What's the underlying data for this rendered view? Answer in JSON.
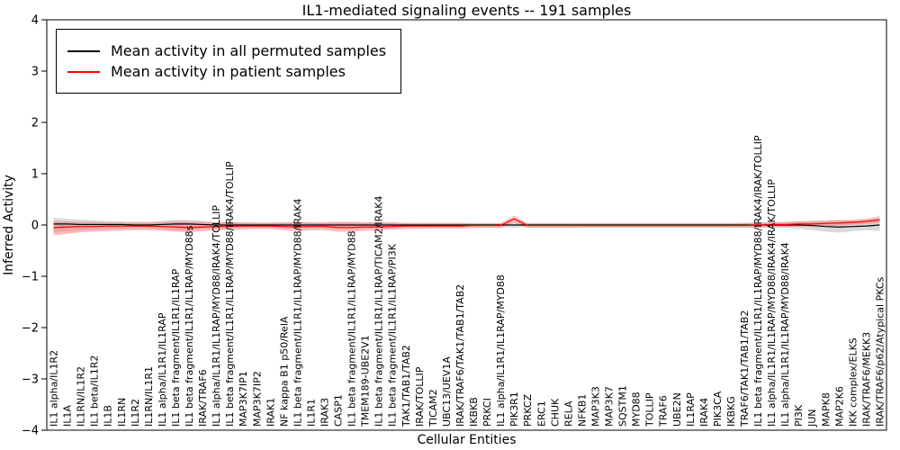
{
  "chart_data": {
    "type": "line",
    "title": "IL1-mediated signaling events -- 191 samples",
    "xlabel": "Cellular Entities",
    "ylabel": "Inferred Activity",
    "ylim": [
      -4,
      4
    ],
    "yticks": [
      -4,
      -3,
      -2,
      -1,
      0,
      1,
      2,
      3,
      4
    ],
    "grid": false,
    "legend_position": "upper left",
    "legend": [
      {
        "label": "Mean activity in all permuted samples",
        "color": "#000000"
      },
      {
        "label": "Mean activity in patient samples",
        "color": "#ff0000"
      }
    ],
    "categories": [
      "IL1 alpha/IL1R2",
      "IL1A",
      "IL1RN/IL1R2",
      "IL1 beta/IL1R2",
      "IL1B",
      "IL1RN",
      "IL1R2",
      "IL1RN/IL1R1",
      "IL1 alpha/IL1R1/IL1RAP",
      "IL1 beta fragment/IL1R1/IL1RAP",
      "IL1 beta fragment/IL1R1/IL1RAP/MYD88s",
      "IRAK/TRAF6",
      "IL1 alpha/IL1R1/IL1RAP/MYD88/IRAK4/TOLLIP",
      "IL1 beta fragment/IL1R1/IL1RAP/MYD88/IRAK4/TOLLIP",
      "MAP3K7IP1",
      "MAP3K7IP2",
      "IRAK1",
      "NF kappa B1 p50/RelA",
      "IL1 beta fragment/IL1R1/IL1RAP/MYD88/IRAK4",
      "IL1R1",
      "IRAK3",
      "CASP1",
      "IL1 beta fragment/IL1R1/IL1RAP/MYD88",
      "TMEM189-UBE2V1",
      "IL1 beta fragment/IL1R1/IL1RAP/TICAM2/IRAK4",
      "IL1 beta fragment/IL1R1/IL1RAP/PI3K",
      "TAK1/TAB1/TAB2",
      "IRAK/TOLLIP",
      "TICAM2",
      "UBC13/UEV1A",
      "IRAK/TRAF6/TAK1/TAB1/TAB2",
      "IKBKB",
      "PRKCI",
      "IL1 alpha/IL1R1/IL1RAP/MYD88",
      "PIK3R1",
      "PRKCZ",
      "ERC1",
      "CHUK",
      "RELA",
      "NFKB1",
      "MAP3K3",
      "MAP3K7",
      "SQSTM1",
      "MYD88",
      "TOLLIP",
      "TRAF6",
      "UBE2N",
      "IL1RAP",
      "IRAK4",
      "PIK3CA",
      "IKBKG",
      "TRAF6/TAK1/TAB1/TAB2",
      "IL1 beta fragment/IL1R1/IL1RAP/MYD88/IRAK4/IRAK/TOLLIP",
      "IL1 alpha/IL1R1/IL1RAP/MYD88/IRAK4/IRAK/TOLLIP",
      "IL1 alpha/IL1R1/IL1RAP/MYD88/IRAK4",
      "PI3K",
      "JUN",
      "MAPK8",
      "MAP2K6",
      "IKK complex/ELKS",
      "IRAK/TRAF6/MEKK3",
      "IRAK/TRAF6/p62/Atypical PKCs"
    ],
    "series": [
      {
        "key": "permuted",
        "name": "Mean activity in all permuted samples",
        "color": "#000000",
        "band_color": "#bbbbbb",
        "band_opacity": 0.55,
        "values": [
          0.02,
          0.02,
          0.01,
          0.01,
          0.01,
          0.01,
          0.0,
          0.0,
          0.01,
          0.02,
          0.02,
          0.01,
          0.0,
          0.0,
          0.0,
          0.0,
          0.0,
          0.0,
          0.0,
          0.0,
          0.0,
          0.0,
          0.0,
          0.0,
          0.0,
          0.0,
          0.0,
          0.0,
          0.0,
          0.0,
          0.0,
          0.0,
          0.0,
          0.0,
          0.0,
          0.0,
          0.0,
          0.0,
          0.0,
          0.0,
          0.0,
          0.0,
          0.0,
          0.0,
          0.0,
          0.0,
          0.0,
          0.0,
          0.0,
          0.0,
          0.0,
          0.0,
          0.0,
          0.0,
          0.0,
          0.0,
          -0.01,
          -0.03,
          -0.04,
          -0.03,
          -0.02,
          0.0
        ],
        "band": {
          "upper": [
            0.14,
            0.12,
            0.1,
            0.09,
            0.08,
            0.07,
            0.06,
            0.06,
            0.08,
            0.1,
            0.1,
            0.08,
            0.06,
            0.06,
            0.05,
            0.05,
            0.05,
            0.05,
            0.06,
            0.05,
            0.05,
            0.06,
            0.06,
            0.05,
            0.05,
            0.05,
            0.04,
            0.04,
            0.04,
            0.04,
            0.04,
            0.04,
            0.04,
            0.04,
            0.05,
            0.04,
            0.04,
            0.04,
            0.04,
            0.04,
            0.04,
            0.04,
            0.04,
            0.04,
            0.04,
            0.04,
            0.04,
            0.04,
            0.04,
            0.04,
            0.04,
            0.05,
            0.05,
            0.06,
            0.06,
            0.07,
            0.08,
            0.09,
            0.1,
            0.09,
            0.1,
            0.12
          ],
          "lower": [
            -0.14,
            -0.12,
            -0.1,
            -0.09,
            -0.08,
            -0.07,
            -0.06,
            -0.06,
            -0.08,
            -0.1,
            -0.1,
            -0.08,
            -0.06,
            -0.06,
            -0.05,
            -0.05,
            -0.05,
            -0.05,
            -0.06,
            -0.05,
            -0.05,
            -0.06,
            -0.06,
            -0.05,
            -0.05,
            -0.05,
            -0.04,
            -0.04,
            -0.04,
            -0.04,
            -0.04,
            -0.04,
            -0.04,
            -0.04,
            -0.05,
            -0.04,
            -0.04,
            -0.04,
            -0.04,
            -0.04,
            -0.04,
            -0.04,
            -0.04,
            -0.04,
            -0.04,
            -0.04,
            -0.04,
            -0.04,
            -0.04,
            -0.04,
            -0.04,
            -0.05,
            -0.05,
            -0.06,
            -0.06,
            -0.07,
            -0.1,
            -0.13,
            -0.15,
            -0.12,
            -0.1,
            -0.12
          ]
        }
      },
      {
        "key": "patient",
        "name": "Mean activity in patient samples",
        "color": "#ff0000",
        "band_color": "#ff6666",
        "band_opacity": 0.45,
        "values": [
          -0.05,
          -0.04,
          -0.03,
          -0.03,
          -0.02,
          -0.02,
          -0.02,
          -0.02,
          -0.03,
          -0.04,
          -0.05,
          -0.04,
          -0.03,
          -0.03,
          -0.02,
          -0.02,
          -0.02,
          -0.03,
          -0.04,
          -0.03,
          -0.03,
          -0.05,
          -0.05,
          -0.04,
          -0.04,
          -0.03,
          -0.02,
          -0.02,
          -0.02,
          -0.02,
          -0.02,
          -0.01,
          -0.01,
          -0.01,
          0.12,
          -0.01,
          -0.01,
          -0.01,
          -0.01,
          -0.01,
          -0.01,
          -0.01,
          -0.01,
          -0.01,
          -0.01,
          -0.01,
          -0.01,
          -0.01,
          -0.01,
          -0.01,
          -0.01,
          -0.01,
          0.0,
          0.01,
          0.01,
          0.02,
          0.02,
          0.03,
          0.04,
          0.05,
          0.07,
          0.1
        ],
        "band": {
          "upper": [
            0.08,
            0.07,
            0.06,
            0.06,
            0.05,
            0.05,
            0.05,
            0.05,
            0.06,
            0.07,
            0.07,
            0.06,
            0.05,
            0.05,
            0.05,
            0.04,
            0.04,
            0.05,
            0.06,
            0.05,
            0.05,
            0.06,
            0.06,
            0.05,
            0.05,
            0.05,
            0.04,
            0.04,
            0.04,
            0.04,
            0.04,
            0.03,
            0.03,
            0.03,
            0.18,
            0.03,
            0.03,
            0.03,
            0.03,
            0.03,
            0.03,
            0.03,
            0.03,
            0.03,
            0.03,
            0.03,
            0.03,
            0.03,
            0.03,
            0.03,
            0.03,
            0.03,
            0.04,
            0.05,
            0.06,
            0.07,
            0.08,
            0.08,
            0.09,
            0.1,
            0.12,
            0.17
          ],
          "lower": [
            -0.2,
            -0.17,
            -0.14,
            -0.13,
            -0.12,
            -0.11,
            -0.1,
            -0.1,
            -0.11,
            -0.13,
            -0.14,
            -0.12,
            -0.1,
            -0.1,
            -0.09,
            -0.08,
            -0.08,
            -0.1,
            -0.12,
            -0.1,
            -0.1,
            -0.13,
            -0.13,
            -0.11,
            -0.1,
            -0.09,
            -0.08,
            -0.08,
            -0.07,
            -0.07,
            -0.07,
            -0.06,
            -0.06,
            -0.06,
            0.05,
            -0.06,
            -0.06,
            -0.06,
            -0.06,
            -0.05,
            -0.05,
            -0.05,
            -0.05,
            -0.05,
            -0.05,
            -0.05,
            -0.05,
            -0.05,
            -0.05,
            -0.05,
            -0.05,
            -0.05,
            -0.05,
            -0.04,
            -0.04,
            -0.03,
            -0.03,
            -0.02,
            -0.01,
            0.0,
            0.02,
            0.04
          ]
        }
      }
    ]
  }
}
